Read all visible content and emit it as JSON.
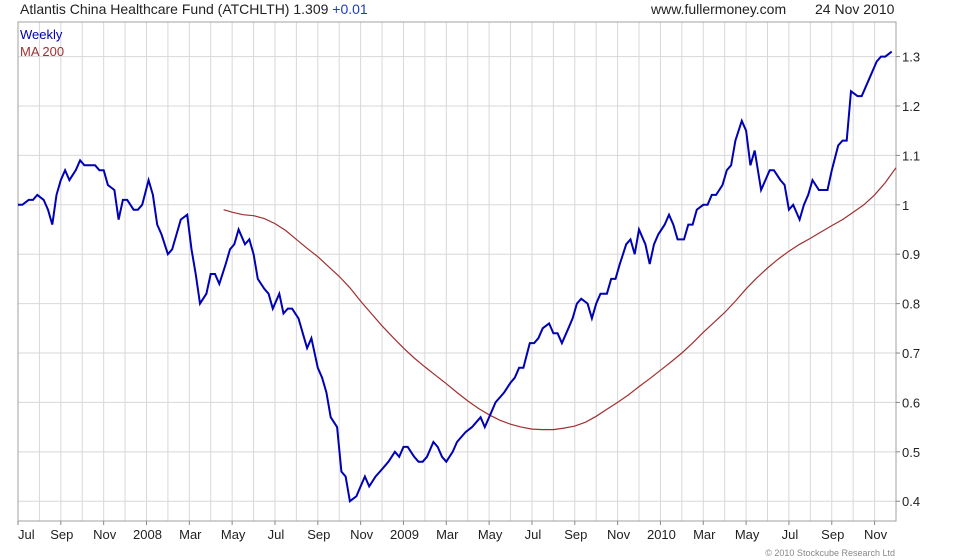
{
  "header": {
    "title": "Atlantis China Healthcare Fund (ATCHLTH)",
    "last_price": "1.309",
    "change": "+0.01",
    "source": "www.fullermoney.com",
    "date": "24 Nov 2010"
  },
  "copyright": "© 2010 Stockcube Research Ltd",
  "colors": {
    "weekly": "#0000b4",
    "ma200": "#a03030",
    "grid": "#d8d8d8"
  },
  "chart_data": {
    "type": "line",
    "title": "Atlantis China Healthcare Fund (ATCHLTH)",
    "x_unit": "months since Jul 2007",
    "xlim": [
      0,
      41
    ],
    "ylim": [
      0.36,
      1.37
    ],
    "grid": true,
    "legend_position": "top-left",
    "x_ticks": [
      {
        "v": 0,
        "label": "Jul"
      },
      {
        "v": 2,
        "label": "Sep"
      },
      {
        "v": 4,
        "label": "Nov"
      },
      {
        "v": 6,
        "label": "2008"
      },
      {
        "v": 8,
        "label": "Mar"
      },
      {
        "v": 10,
        "label": "May"
      },
      {
        "v": 12,
        "label": "Jul"
      },
      {
        "v": 14,
        "label": "Sep"
      },
      {
        "v": 16,
        "label": "Nov"
      },
      {
        "v": 18,
        "label": "2009"
      },
      {
        "v": 20,
        "label": "Mar"
      },
      {
        "v": 22,
        "label": "May"
      },
      {
        "v": 24,
        "label": "Jul"
      },
      {
        "v": 26,
        "label": "Sep"
      },
      {
        "v": 28,
        "label": "Nov"
      },
      {
        "v": 30,
        "label": "2010"
      },
      {
        "v": 32,
        "label": "Mar"
      },
      {
        "v": 34,
        "label": "May"
      },
      {
        "v": 36,
        "label": "Jul"
      },
      {
        "v": 38,
        "label": "Sep"
      },
      {
        "v": 40,
        "label": "Nov"
      }
    ],
    "y_ticks": [
      {
        "v": 0.4,
        "label": "0.4"
      },
      {
        "v": 0.5,
        "label": "0.5"
      },
      {
        "v": 0.6,
        "label": "0.6"
      },
      {
        "v": 0.7,
        "label": "0.7"
      },
      {
        "v": 0.8,
        "label": "0.8"
      },
      {
        "v": 0.9,
        "label": "0.9"
      },
      {
        "v": 1.0,
        "label": "1"
      },
      {
        "v": 1.1,
        "label": "1.1"
      },
      {
        "v": 1.2,
        "label": "1.2"
      },
      {
        "v": 1.3,
        "label": "1.3"
      }
    ],
    "series": [
      {
        "name": "Weekly",
        "points": [
          [
            0.0,
            1.0
          ],
          [
            0.2,
            1.0
          ],
          [
            0.5,
            1.01
          ],
          [
            0.7,
            1.01
          ],
          [
            0.9,
            1.02
          ],
          [
            1.2,
            1.01
          ],
          [
            1.4,
            0.99
          ],
          [
            1.6,
            0.96
          ],
          [
            1.8,
            1.02
          ],
          [
            2.0,
            1.05
          ],
          [
            2.2,
            1.07
          ],
          [
            2.4,
            1.05
          ],
          [
            2.7,
            1.07
          ],
          [
            2.9,
            1.09
          ],
          [
            3.1,
            1.08
          ],
          [
            3.3,
            1.08
          ],
          [
            3.6,
            1.08
          ],
          [
            3.8,
            1.07
          ],
          [
            4.0,
            1.07
          ],
          [
            4.2,
            1.04
          ],
          [
            4.5,
            1.03
          ],
          [
            4.7,
            0.97
          ],
          [
            4.9,
            1.01
          ],
          [
            5.1,
            1.01
          ],
          [
            5.4,
            0.99
          ],
          [
            5.6,
            0.99
          ],
          [
            5.8,
            1.0
          ],
          [
            6.1,
            1.05
          ],
          [
            6.3,
            1.02
          ],
          [
            6.5,
            0.96
          ],
          [
            6.7,
            0.94
          ],
          [
            7.0,
            0.9
          ],
          [
            7.2,
            0.91
          ],
          [
            7.4,
            0.94
          ],
          [
            7.6,
            0.97
          ],
          [
            7.9,
            0.98
          ],
          [
            8.1,
            0.91
          ],
          [
            8.3,
            0.86
          ],
          [
            8.5,
            0.8
          ],
          [
            8.8,
            0.82
          ],
          [
            9.0,
            0.86
          ],
          [
            9.2,
            0.86
          ],
          [
            9.4,
            0.84
          ],
          [
            9.7,
            0.88
          ],
          [
            9.9,
            0.91
          ],
          [
            10.1,
            0.92
          ],
          [
            10.3,
            0.95
          ],
          [
            10.6,
            0.92
          ],
          [
            10.8,
            0.93
          ],
          [
            11.0,
            0.9
          ],
          [
            11.2,
            0.85
          ],
          [
            11.5,
            0.83
          ],
          [
            11.7,
            0.82
          ],
          [
            11.9,
            0.79
          ],
          [
            12.2,
            0.82
          ],
          [
            12.4,
            0.78
          ],
          [
            12.6,
            0.79
          ],
          [
            12.8,
            0.79
          ],
          [
            13.1,
            0.77
          ],
          [
            13.3,
            0.74
          ],
          [
            13.5,
            0.71
          ],
          [
            13.7,
            0.73
          ],
          [
            14.0,
            0.67
          ],
          [
            14.2,
            0.65
          ],
          [
            14.4,
            0.62
          ],
          [
            14.6,
            0.57
          ],
          [
            14.9,
            0.55
          ],
          [
            15.1,
            0.46
          ],
          [
            15.3,
            0.45
          ],
          [
            15.5,
            0.4
          ],
          [
            15.8,
            0.41
          ],
          [
            16.0,
            0.43
          ],
          [
            16.2,
            0.45
          ],
          [
            16.4,
            0.43
          ],
          [
            16.7,
            0.45
          ],
          [
            16.9,
            0.46
          ],
          [
            17.1,
            0.47
          ],
          [
            17.3,
            0.48
          ],
          [
            17.6,
            0.5
          ],
          [
            17.8,
            0.49
          ],
          [
            18.0,
            0.51
          ],
          [
            18.2,
            0.51
          ],
          [
            18.5,
            0.49
          ],
          [
            18.7,
            0.48
          ],
          [
            18.9,
            0.48
          ],
          [
            19.1,
            0.49
          ],
          [
            19.4,
            0.52
          ],
          [
            19.6,
            0.51
          ],
          [
            19.8,
            0.49
          ],
          [
            20.0,
            0.48
          ],
          [
            20.3,
            0.5
          ],
          [
            20.5,
            0.52
          ],
          [
            20.7,
            0.53
          ],
          [
            20.9,
            0.54
          ],
          [
            21.2,
            0.55
          ],
          [
            21.4,
            0.56
          ],
          [
            21.6,
            0.57
          ],
          [
            21.8,
            0.55
          ],
          [
            22.1,
            0.58
          ],
          [
            22.3,
            0.6
          ],
          [
            22.5,
            0.61
          ],
          [
            22.7,
            0.62
          ],
          [
            23.0,
            0.64
          ],
          [
            23.2,
            0.65
          ],
          [
            23.4,
            0.67
          ],
          [
            23.6,
            0.67
          ],
          [
            23.9,
            0.72
          ],
          [
            24.1,
            0.72
          ],
          [
            24.3,
            0.73
          ],
          [
            24.5,
            0.75
          ],
          [
            24.8,
            0.76
          ],
          [
            25.0,
            0.74
          ],
          [
            25.2,
            0.74
          ],
          [
            25.4,
            0.72
          ],
          [
            25.7,
            0.75
          ],
          [
            25.9,
            0.77
          ],
          [
            26.1,
            0.8
          ],
          [
            26.3,
            0.81
          ],
          [
            26.6,
            0.8
          ],
          [
            26.8,
            0.77
          ],
          [
            27.0,
            0.8
          ],
          [
            27.2,
            0.82
          ],
          [
            27.5,
            0.82
          ],
          [
            27.7,
            0.85
          ],
          [
            27.9,
            0.85
          ],
          [
            28.1,
            0.88
          ],
          [
            28.4,
            0.92
          ],
          [
            28.6,
            0.93
          ],
          [
            28.8,
            0.9
          ],
          [
            29.0,
            0.95
          ],
          [
            29.3,
            0.92
          ],
          [
            29.5,
            0.88
          ],
          [
            29.7,
            0.92
          ],
          [
            29.9,
            0.94
          ],
          [
            30.2,
            0.96
          ],
          [
            30.4,
            0.98
          ],
          [
            30.6,
            0.96
          ],
          [
            30.8,
            0.93
          ],
          [
            31.1,
            0.93
          ],
          [
            31.3,
            0.96
          ],
          [
            31.5,
            0.96
          ],
          [
            31.7,
            0.99
          ],
          [
            32.0,
            1.0
          ],
          [
            32.2,
            1.0
          ],
          [
            32.4,
            1.02
          ],
          [
            32.6,
            1.02
          ],
          [
            32.9,
            1.04
          ],
          [
            33.1,
            1.07
          ],
          [
            33.3,
            1.08
          ],
          [
            33.5,
            1.13
          ],
          [
            33.8,
            1.17
          ],
          [
            34.0,
            1.15
          ],
          [
            34.2,
            1.08
          ],
          [
            34.4,
            1.11
          ],
          [
            34.7,
            1.03
          ],
          [
            34.9,
            1.05
          ],
          [
            35.1,
            1.07
          ],
          [
            35.3,
            1.07
          ],
          [
            35.6,
            1.05
          ],
          [
            35.8,
            1.04
          ],
          [
            36.0,
            0.99
          ],
          [
            36.2,
            1.0
          ],
          [
            36.5,
            0.97
          ],
          [
            36.7,
            1.0
          ],
          [
            36.9,
            1.02
          ],
          [
            37.1,
            1.05
          ],
          [
            37.4,
            1.03
          ],
          [
            37.6,
            1.03
          ],
          [
            37.8,
            1.03
          ],
          [
            38.0,
            1.07
          ],
          [
            38.3,
            1.12
          ],
          [
            38.5,
            1.13
          ],
          [
            38.7,
            1.13
          ],
          [
            38.9,
            1.23
          ],
          [
            39.2,
            1.22
          ],
          [
            39.4,
            1.22
          ],
          [
            39.6,
            1.24
          ],
          [
            39.8,
            1.26
          ],
          [
            40.1,
            1.29
          ],
          [
            40.3,
            1.3
          ],
          [
            40.5,
            1.3
          ],
          [
            40.8,
            1.31
          ]
        ]
      },
      {
        "name": "MA 200",
        "points": [
          [
            9.6,
            0.99
          ],
          [
            10.0,
            0.985
          ],
          [
            10.5,
            0.98
          ],
          [
            11.0,
            0.978
          ],
          [
            11.5,
            0.972
          ],
          [
            12.0,
            0.962
          ],
          [
            12.5,
            0.948
          ],
          [
            13.0,
            0.93
          ],
          [
            13.5,
            0.912
          ],
          [
            14.0,
            0.895
          ],
          [
            14.5,
            0.875
          ],
          [
            15.0,
            0.855
          ],
          [
            15.5,
            0.832
          ],
          [
            16.0,
            0.805
          ],
          [
            16.5,
            0.78
          ],
          [
            17.0,
            0.755
          ],
          [
            17.5,
            0.732
          ],
          [
            18.0,
            0.71
          ],
          [
            18.5,
            0.69
          ],
          [
            19.0,
            0.672
          ],
          [
            19.5,
            0.655
          ],
          [
            20.0,
            0.638
          ],
          [
            20.5,
            0.62
          ],
          [
            21.0,
            0.603
          ],
          [
            21.5,
            0.588
          ],
          [
            22.0,
            0.575
          ],
          [
            22.5,
            0.564
          ],
          [
            23.0,
            0.556
          ],
          [
            23.5,
            0.55
          ],
          [
            24.0,
            0.546
          ],
          [
            24.5,
            0.545
          ],
          [
            25.0,
            0.545
          ],
          [
            25.5,
            0.548
          ],
          [
            26.0,
            0.552
          ],
          [
            26.5,
            0.56
          ],
          [
            27.0,
            0.572
          ],
          [
            27.5,
            0.586
          ],
          [
            28.0,
            0.6
          ],
          [
            28.5,
            0.615
          ],
          [
            29.0,
            0.632
          ],
          [
            29.5,
            0.648
          ],
          [
            30.0,
            0.665
          ],
          [
            30.5,
            0.682
          ],
          [
            31.0,
            0.7
          ],
          [
            31.5,
            0.72
          ],
          [
            32.0,
            0.742
          ],
          [
            32.5,
            0.762
          ],
          [
            33.0,
            0.782
          ],
          [
            33.5,
            0.805
          ],
          [
            34.0,
            0.83
          ],
          [
            34.5,
            0.852
          ],
          [
            35.0,
            0.872
          ],
          [
            35.5,
            0.89
          ],
          [
            36.0,
            0.906
          ],
          [
            36.5,
            0.92
          ],
          [
            37.0,
            0.932
          ],
          [
            37.5,
            0.945
          ],
          [
            38.0,
            0.958
          ],
          [
            38.5,
            0.97
          ],
          [
            39.0,
            0.985
          ],
          [
            39.5,
            1.0
          ],
          [
            40.0,
            1.02
          ],
          [
            40.5,
            1.045
          ],
          [
            41.0,
            1.075
          ]
        ]
      }
    ]
  }
}
